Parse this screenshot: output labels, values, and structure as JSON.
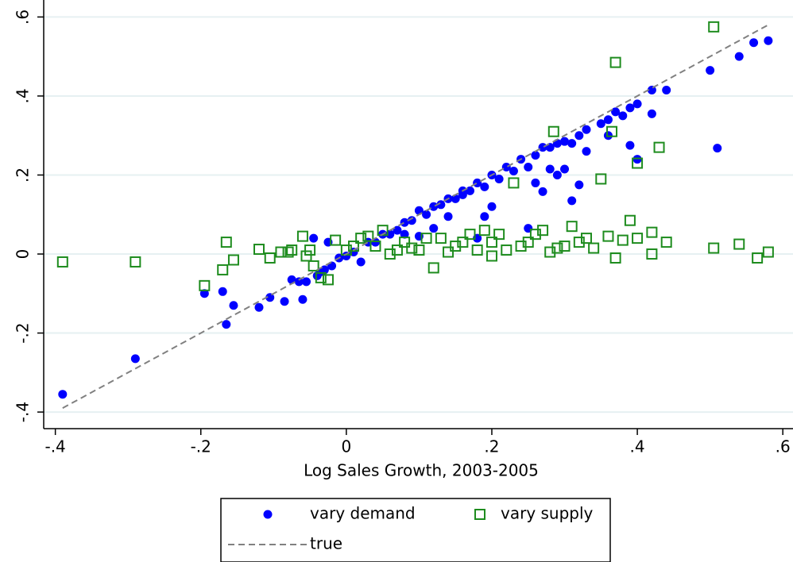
{
  "chart_data": {
    "type": "scatter",
    "x_label": "Log Sales Growth, 2003-2005",
    "xlim": [
      -0.416,
      0.614
    ],
    "ylim": [
      -0.442,
      0.643
    ],
    "xticks": [
      {
        "value": -0.4,
        "label": "-.4"
      },
      {
        "value": -0.2,
        "label": "-.2"
      },
      0,
      {
        "value": 0.2,
        "label": ".2"
      },
      {
        "value": 0.4,
        "label": ".4"
      },
      {
        "value": 0.6,
        "label": ".6"
      }
    ],
    "yticks": [
      {
        "value": -0.4,
        "label": "-.4"
      },
      {
        "value": -0.2,
        "label": "-.2"
      },
      0,
      {
        "value": 0.2,
        "label": ".2"
      },
      {
        "value": 0.4,
        "label": ".4"
      },
      {
        "value": 0.6,
        "label": ".6"
      }
    ],
    "grid": true,
    "legend": "bottom",
    "series": [
      {
        "name": "vary demand",
        "color": "#0000ff",
        "marker": "circle",
        "x": [
          -0.39,
          -0.29,
          -0.195,
          -0.17,
          -0.165,
          -0.155,
          -0.12,
          -0.105,
          -0.085,
          -0.075,
          -0.065,
          -0.06,
          -0.055,
          -0.045,
          -0.04,
          -0.035,
          -0.03,
          -0.025,
          -0.02,
          -0.01,
          0,
          0.01,
          0.02,
          0.03,
          0.04,
          0.05,
          0.06,
          0.07,
          0.08,
          0.09,
          0.1,
          0.11,
          0.12,
          0.13,
          0.14,
          0.15,
          0.16,
          0.17,
          0.18,
          0.19,
          0.2,
          0.21,
          0.22,
          0.23,
          0.24,
          0.25,
          0.26,
          0.27,
          0.28,
          0.29,
          0.3,
          0.31,
          0.32,
          0.33,
          0.35,
          0.36,
          0.37,
          0.38,
          0.39,
          0.4,
          0.42,
          0.44,
          0.5,
          0.51,
          0.54,
          0.56,
          0.58,
          0.3,
          0.31,
          0.32,
          0.33,
          0.28,
          0.27,
          0.25,
          0.2,
          0.19,
          0.18,
          0.16,
          0.14,
          0.12,
          0.39,
          0.4,
          0.42,
          0.36,
          0.29,
          0.26,
          0.08,
          0.1
        ],
        "values": [
          -0.355,
          -0.265,
          -0.1,
          -0.095,
          -0.178,
          -0.13,
          -0.135,
          -0.11,
          -0.12,
          -0.065,
          -0.07,
          -0.115,
          -0.07,
          0.04,
          -0.055,
          -0.045,
          -0.04,
          0.03,
          -0.03,
          -0.01,
          -0.005,
          0.005,
          -0.02,
          0.03,
          0.03,
          0.05,
          0.05,
          0.06,
          0.08,
          0.085,
          0.11,
          0.1,
          0.12,
          0.125,
          0.14,
          0.14,
          0.16,
          0.16,
          0.18,
          0.17,
          0.2,
          0.19,
          0.22,
          0.21,
          0.24,
          0.22,
          0.25,
          0.27,
          0.27,
          0.28,
          0.285,
          0.28,
          0.3,
          0.315,
          0.33,
          0.34,
          0.36,
          0.35,
          0.37,
          0.38,
          0.415,
          0.415,
          0.465,
          0.268,
          0.5,
          0.535,
          0.54,
          0.215,
          0.135,
          0.175,
          0.26,
          0.215,
          0.158,
          0.065,
          0.12,
          0.095,
          0.04,
          0.15,
          0.095,
          0.065,
          0.275,
          0.24,
          0.355,
          0.3,
          0.2,
          0.18,
          0.05,
          0.045
        ]
      },
      {
        "name": "vary supply",
        "color": "#1e8c1e",
        "marker": "square",
        "x": [
          -0.39,
          -0.29,
          -0.195,
          -0.17,
          -0.165,
          -0.155,
          -0.12,
          -0.105,
          -0.09,
          -0.075,
          -0.06,
          -0.055,
          -0.045,
          -0.035,
          -0.025,
          -0.015,
          0,
          0.02,
          0.04,
          0.05,
          0.06,
          0.08,
          0.1,
          0.12,
          0.13,
          0.15,
          0.17,
          0.18,
          0.19,
          0.2,
          0.21,
          0.22,
          0.23,
          0.24,
          0.26,
          0.27,
          0.28,
          0.285,
          0.3,
          0.31,
          0.32,
          0.34,
          0.35,
          0.36,
          0.365,
          0.37,
          0.38,
          0.39,
          0.4,
          0.4,
          0.42,
          0.43,
          0.44,
          0.505,
          0.505,
          0.54,
          0.565,
          0.58,
          0.37,
          0.33,
          0.25,
          0.16,
          0.11,
          0.07,
          0.03,
          0.01,
          -0.08,
          -0.05,
          0.42,
          0.29,
          0.2,
          0.14,
          0.09
        ],
        "values": [
          -0.02,
          -0.02,
          -0.08,
          -0.04,
          0.03,
          -0.015,
          0.012,
          -0.01,
          0.005,
          0.01,
          0.045,
          -0.005,
          -0.03,
          -0.06,
          -0.065,
          0.035,
          0.01,
          0.04,
          0.02,
          0.06,
          0,
          0.03,
          0.01,
          -0.035,
          0.04,
          0.02,
          0.05,
          0.01,
          0.06,
          0.03,
          0.05,
          0.01,
          0.18,
          0.02,
          0.05,
          0.06,
          0.005,
          0.31,
          0.02,
          0.07,
          0.03,
          0.015,
          0.19,
          0.045,
          0.31,
          0.485,
          0.035,
          0.085,
          0.04,
          0.23,
          0.055,
          0.27,
          0.03,
          0.575,
          0.015,
          0.025,
          -0.01,
          0.005,
          -0.01,
          0.04,
          0.03,
          0.03,
          0.04,
          0.01,
          0.045,
          0.02,
          0.005,
          0.01,
          0,
          0.015,
          -0.005,
          0.005,
          0.015
        ]
      },
      {
        "name": "true",
        "color": "#808080",
        "marker": "dashed-line",
        "x": [
          -0.39,
          0.58
        ],
        "values": [
          -0.39,
          0.58
        ]
      }
    ]
  }
}
